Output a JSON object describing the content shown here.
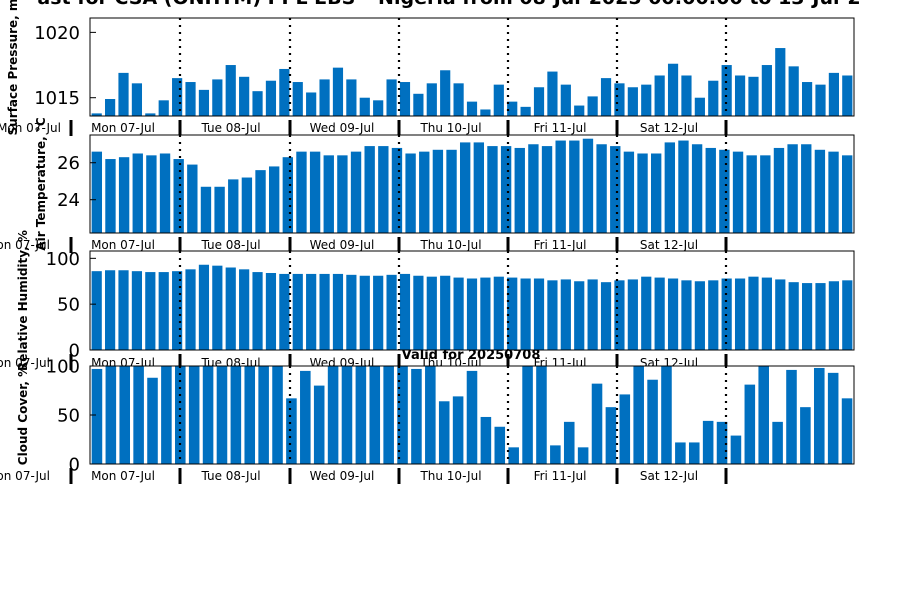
{
  "title": "ast for CSA (ONHTM) PPL EBS  – Nigeria from 08-Jul-2025 00:00:00 to 13-Jul-2",
  "valid_label": "Valid for 20250708",
  "bar_color": "#0070c0",
  "day_labels": [
    "Mon 07-Jul",
    "Tue 08-Jul",
    "Wed 09-Jul",
    "Thu 10-Jul",
    "Fri 11-Jul",
    "Sat 12-Jul"
  ],
  "edge_day_label": "Mon 07-Jul",
  "chart_data": [
    {
      "type": "bar",
      "ylabel": "Surface Pressure, m",
      "ylim": [
        1013.6,
        1021.1
      ],
      "yticks": [
        1015,
        1020
      ],
      "ytick_labels": [
        "1015",
        "1020"
      ],
      "values": [
        1013.8,
        1014.9,
        1016.9,
        1016.1,
        1013.8,
        1014.8,
        1016.5,
        1016.2,
        1015.6,
        1016.4,
        1017.5,
        1016.6,
        1015.5,
        1016.3,
        1017.2,
        1016.2,
        1015.4,
        1016.4,
        1017.3,
        1016.4,
        1015.0,
        1014.8,
        1016.4,
        1016.2,
        1015.3,
        1016.1,
        1017.1,
        1016.1,
        1014.7,
        1014.1,
        1016.0,
        1014.7,
        1014.3,
        1015.8,
        1017.0,
        1016.0,
        1014.4,
        1015.1,
        1016.5,
        1016.1,
        1015.8,
        1016.0,
        1016.7,
        1017.6,
        1016.7,
        1015.0,
        1016.3,
        1017.5,
        1016.7,
        1016.6,
        1017.5,
        1018.8,
        1017.4,
        1016.2,
        1016.0,
        1016.9,
        1016.7
      ]
    },
    {
      "type": "bar",
      "ylabel": "Air Temperature, °C",
      "ylim": [
        22.2,
        27.5
      ],
      "yticks": [
        24,
        26
      ],
      "ytick_labels": [
        "24",
        "26"
      ],
      "values": [
        26.6,
        26.2,
        26.3,
        26.5,
        26.4,
        26.5,
        26.2,
        25.9,
        24.7,
        24.7,
        25.1,
        25.2,
        25.6,
        25.8,
        26.3,
        26.6,
        26.6,
        26.4,
        26.4,
        26.6,
        26.9,
        26.9,
        26.8,
        26.5,
        26.6,
        26.7,
        26.7,
        27.1,
        27.1,
        26.9,
        26.9,
        26.8,
        27.0,
        26.9,
        27.2,
        27.2,
        27.3,
        27.0,
        26.9,
        26.6,
        26.5,
        26.5,
        27.1,
        27.2,
        27.0,
        26.8,
        26.7,
        26.6,
        26.4,
        26.4,
        26.8,
        27.0,
        27.0,
        26.7,
        26.6,
        26.4
      ]
    },
    {
      "type": "bar",
      "ylabel": "Relative Humidity, %",
      "ylim": [
        0,
        108
      ],
      "yticks": [
        0,
        50,
        100
      ],
      "ytick_labels": [
        "0",
        "50",
        "100"
      ],
      "values": [
        86,
        87,
        87,
        86,
        85,
        85,
        86,
        88,
        93,
        92,
        90,
        88,
        85,
        84,
        83,
        83,
        83,
        83,
        83,
        82,
        81,
        81,
        82,
        83,
        81,
        80,
        81,
        79,
        78,
        79,
        80,
        79,
        78,
        78,
        76,
        77,
        75,
        77,
        74,
        76,
        77,
        80,
        79,
        78,
        76,
        75,
        76,
        78,
        78,
        80,
        79,
        77,
        74,
        73,
        73,
        75,
        76
      ]
    },
    {
      "type": "bar",
      "ylabel": "Cloud Cover, %",
      "ylim": [
        0,
        100
      ],
      "yticks": [
        0,
        50,
        100
      ],
      "ytick_labels": [
        "0",
        "50",
        "100"
      ],
      "values": [
        97,
        100,
        100,
        100,
        88,
        100,
        100,
        100,
        100,
        100,
        100,
        100,
        100,
        100,
        67,
        95,
        80,
        100,
        100,
        100,
        100,
        100,
        100,
        97,
        100,
        64,
        69,
        95,
        48,
        38,
        17,
        100,
        100,
        19,
        43,
        17,
        82,
        58,
        71,
        100,
        86,
        100,
        22,
        22,
        44,
        43,
        29,
        81,
        100,
        43,
        96,
        58,
        98,
        93,
        67
      ]
    }
  ]
}
